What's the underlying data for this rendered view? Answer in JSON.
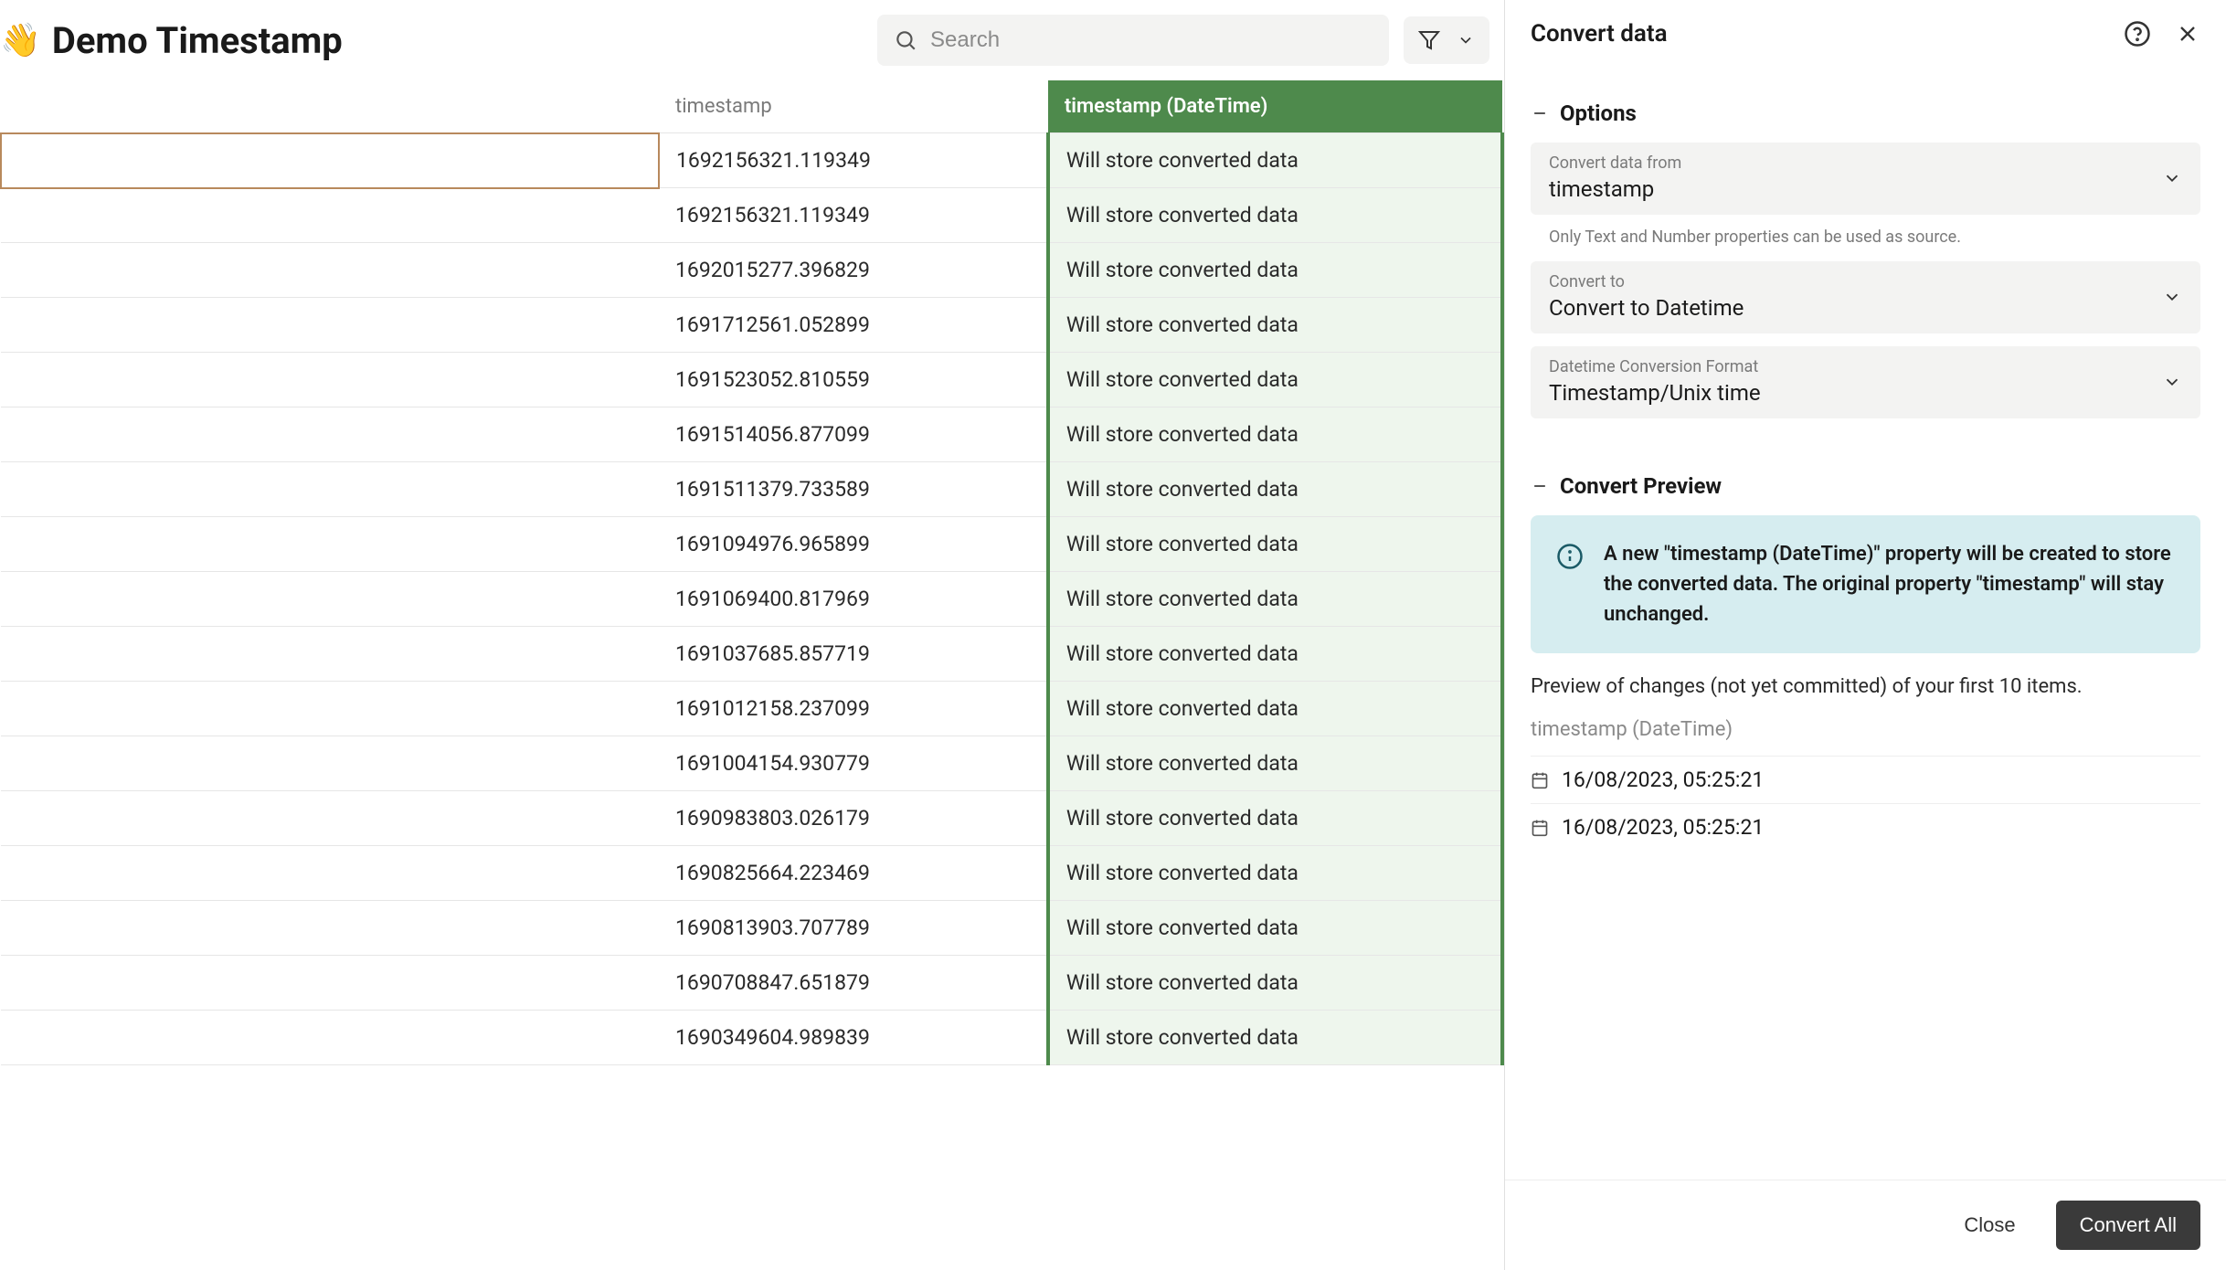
{
  "header": {
    "emoji": "👋",
    "title": "Demo Timestamp",
    "searchPlaceholder": "Search"
  },
  "table": {
    "columns": {
      "col1": "",
      "col2": "timestamp",
      "col3": "timestamp (DateTime)"
    },
    "convertedPlaceholder": "Will store converted data",
    "rows": [
      {
        "ts": "1692156321.119349",
        "selected": true
      },
      {
        "ts": "1692156321.119349"
      },
      {
        "ts": "1692015277.396829"
      },
      {
        "ts": "1691712561.052899"
      },
      {
        "ts": "1691523052.810559"
      },
      {
        "ts": "1691514056.877099"
      },
      {
        "ts": "1691511379.733589"
      },
      {
        "ts": "1691094976.965899"
      },
      {
        "ts": "1691069400.817969"
      },
      {
        "ts": "1691037685.857719"
      },
      {
        "ts": "1691012158.237099"
      },
      {
        "ts": "1691004154.930779"
      },
      {
        "ts": "1690983803.026179"
      },
      {
        "ts": "1690825664.223469"
      },
      {
        "ts": "1690813903.707789"
      },
      {
        "ts": "1690708847.651879"
      },
      {
        "ts": "1690349604.989839"
      }
    ]
  },
  "panel": {
    "title": "Convert data",
    "options": {
      "sectionTitle": "Options",
      "fromLabel": "Convert data from",
      "fromValue": "timestamp",
      "fromHelper": "Only Text and Number properties can be used as source.",
      "toLabel": "Convert to",
      "toValue": "Convert to Datetime",
      "formatLabel": "Datetime Conversion Format",
      "formatValue": "Timestamp/Unix time"
    },
    "preview": {
      "sectionTitle": "Convert Preview",
      "infoText": "A new \"timestamp (DateTime)\" property will be created to store the converted data. The original property \"timestamp\" will stay unchanged.",
      "caption": "Preview of changes (not yet committed) of your first 10 items.",
      "previewHeader": "timestamp (DateTime)",
      "rows": [
        "16/08/2023, 05:25:21",
        "16/08/2023, 05:25:21"
      ]
    },
    "footer": {
      "close": "Close",
      "convertAll": "Convert All"
    }
  },
  "colors": {
    "highlightGreen": "#4e8a4c",
    "highlightBg": "#eef6ed",
    "infoBg": "#d6edf0",
    "fieldBg": "#f3f3f2"
  }
}
